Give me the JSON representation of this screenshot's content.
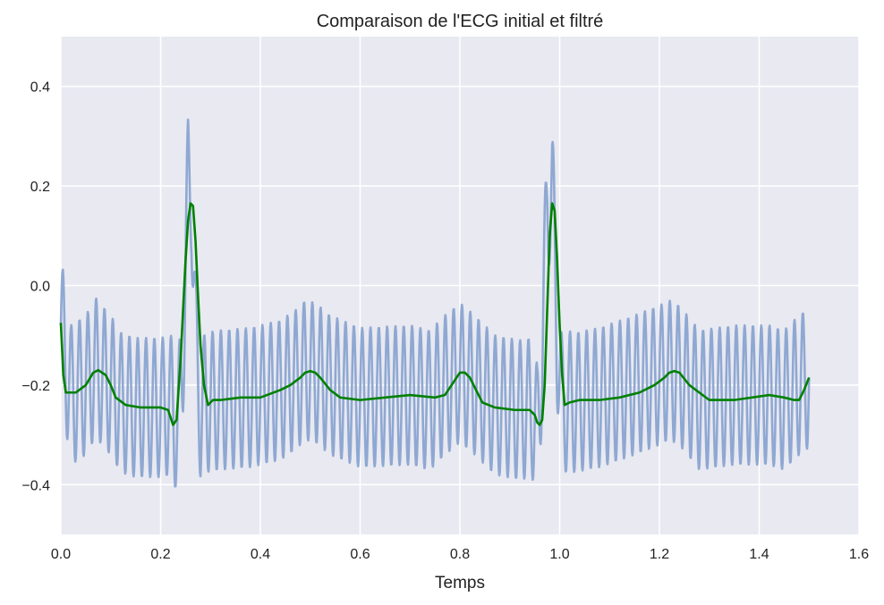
{
  "chart_data": {
    "type": "line",
    "title": "Comparaison de l'ECG initial et filtré",
    "xlabel": "Temps",
    "ylabel": "",
    "xlim": [
      0.0,
      1.6
    ],
    "ylim": [
      -0.5,
      0.5
    ],
    "xticks": [
      0.0,
      0.2,
      0.4,
      0.6,
      0.8,
      1.0,
      1.2,
      1.4,
      1.6
    ],
    "xtick_labels": [
      "0.0",
      "0.2",
      "0.4",
      "0.6",
      "0.8",
      "1.0",
      "1.2",
      "1.4",
      "1.6"
    ],
    "yticks": [
      -0.4,
      -0.2,
      0.0,
      0.2,
      0.4
    ],
    "ytick_labels": [
      "−0.4",
      "−0.2",
      "0.0",
      "0.2",
      "0.4"
    ],
    "grid": true,
    "background": "#e8e9f1",
    "series": [
      {
        "color": "#8fa8d2",
        "style": "noisy",
        "noise_amplitude": 0.14,
        "noise_frequency_hz": 60,
        "x": [
          0.0,
          0.02,
          0.05,
          0.07,
          0.1,
          0.12,
          0.15,
          0.2,
          0.225,
          0.235,
          0.245,
          0.255,
          0.262,
          0.27,
          0.28,
          0.29,
          0.32,
          0.38,
          0.44,
          0.47,
          0.49,
          0.51,
          0.54,
          0.6,
          0.7,
          0.74,
          0.77,
          0.8,
          0.83,
          0.87,
          0.92,
          0.945,
          0.955,
          0.965,
          0.975,
          0.985,
          0.995,
          1.005,
          1.015,
          1.03,
          1.08,
          1.15,
          1.2,
          1.22,
          1.24,
          1.28,
          1.35,
          1.42,
          1.45,
          1.48,
          1.5
        ],
        "y": [
          -0.08,
          -0.22,
          -0.2,
          -0.165,
          -0.2,
          -0.235,
          -0.245,
          -0.245,
          -0.24,
          -0.3,
          -0.12,
          0.2,
          0.2,
          -0.12,
          -0.25,
          -0.235,
          -0.23,
          -0.225,
          -0.21,
          -0.19,
          -0.17,
          -0.175,
          -0.2,
          -0.225,
          -0.22,
          -0.23,
          -0.2,
          -0.175,
          -0.2,
          -0.24,
          -0.25,
          -0.245,
          -0.3,
          -0.13,
          0.17,
          0.2,
          -0.1,
          -0.25,
          -0.23,
          -0.235,
          -0.225,
          -0.2,
          -0.18,
          -0.17,
          -0.18,
          -0.23,
          -0.22,
          -0.22,
          -0.23,
          -0.2,
          -0.185
        ]
      },
      {
        "color": "#008000",
        "style": "smooth",
        "x": [
          0.0,
          0.005,
          0.01,
          0.03,
          0.05,
          0.065,
          0.075,
          0.09,
          0.1,
          0.11,
          0.13,
          0.16,
          0.2,
          0.215,
          0.225,
          0.232,
          0.24,
          0.245,
          0.25,
          0.255,
          0.26,
          0.265,
          0.27,
          0.275,
          0.28,
          0.287,
          0.295,
          0.305,
          0.32,
          0.36,
          0.4,
          0.44,
          0.46,
          0.48,
          0.49,
          0.5,
          0.51,
          0.52,
          0.54,
          0.56,
          0.6,
          0.65,
          0.7,
          0.75,
          0.77,
          0.78,
          0.79,
          0.8,
          0.81,
          0.82,
          0.83,
          0.845,
          0.87,
          0.91,
          0.94,
          0.95,
          0.955,
          0.96,
          0.965,
          0.97,
          0.975,
          0.98,
          0.985,
          0.99,
          0.995,
          1.0,
          1.005,
          1.01,
          1.02,
          1.04,
          1.08,
          1.12,
          1.16,
          1.19,
          1.21,
          1.22,
          1.23,
          1.24,
          1.26,
          1.3,
          1.35,
          1.42,
          1.45,
          1.47,
          1.48,
          1.49,
          1.5
        ],
        "y": [
          -0.075,
          -0.18,
          -0.215,
          -0.215,
          -0.2,
          -0.175,
          -0.17,
          -0.18,
          -0.2,
          -0.225,
          -0.24,
          -0.245,
          -0.245,
          -0.25,
          -0.28,
          -0.27,
          -0.15,
          -0.05,
          0.05,
          0.13,
          0.165,
          0.16,
          0.09,
          -0.02,
          -0.12,
          -0.2,
          -0.24,
          -0.23,
          -0.23,
          -0.225,
          -0.225,
          -0.21,
          -0.2,
          -0.185,
          -0.175,
          -0.172,
          -0.175,
          -0.185,
          -0.21,
          -0.225,
          -0.23,
          -0.225,
          -0.22,
          -0.225,
          -0.22,
          -0.205,
          -0.19,
          -0.175,
          -0.175,
          -0.185,
          -0.205,
          -0.235,
          -0.245,
          -0.25,
          -0.25,
          -0.26,
          -0.275,
          -0.28,
          -0.27,
          -0.2,
          -0.05,
          0.1,
          0.165,
          0.15,
          0.05,
          -0.08,
          -0.18,
          -0.24,
          -0.235,
          -0.23,
          -0.23,
          -0.225,
          -0.215,
          -0.2,
          -0.185,
          -0.175,
          -0.172,
          -0.175,
          -0.2,
          -0.23,
          -0.23,
          -0.22,
          -0.225,
          -0.23,
          -0.23,
          -0.21,
          -0.185
        ]
      }
    ]
  }
}
